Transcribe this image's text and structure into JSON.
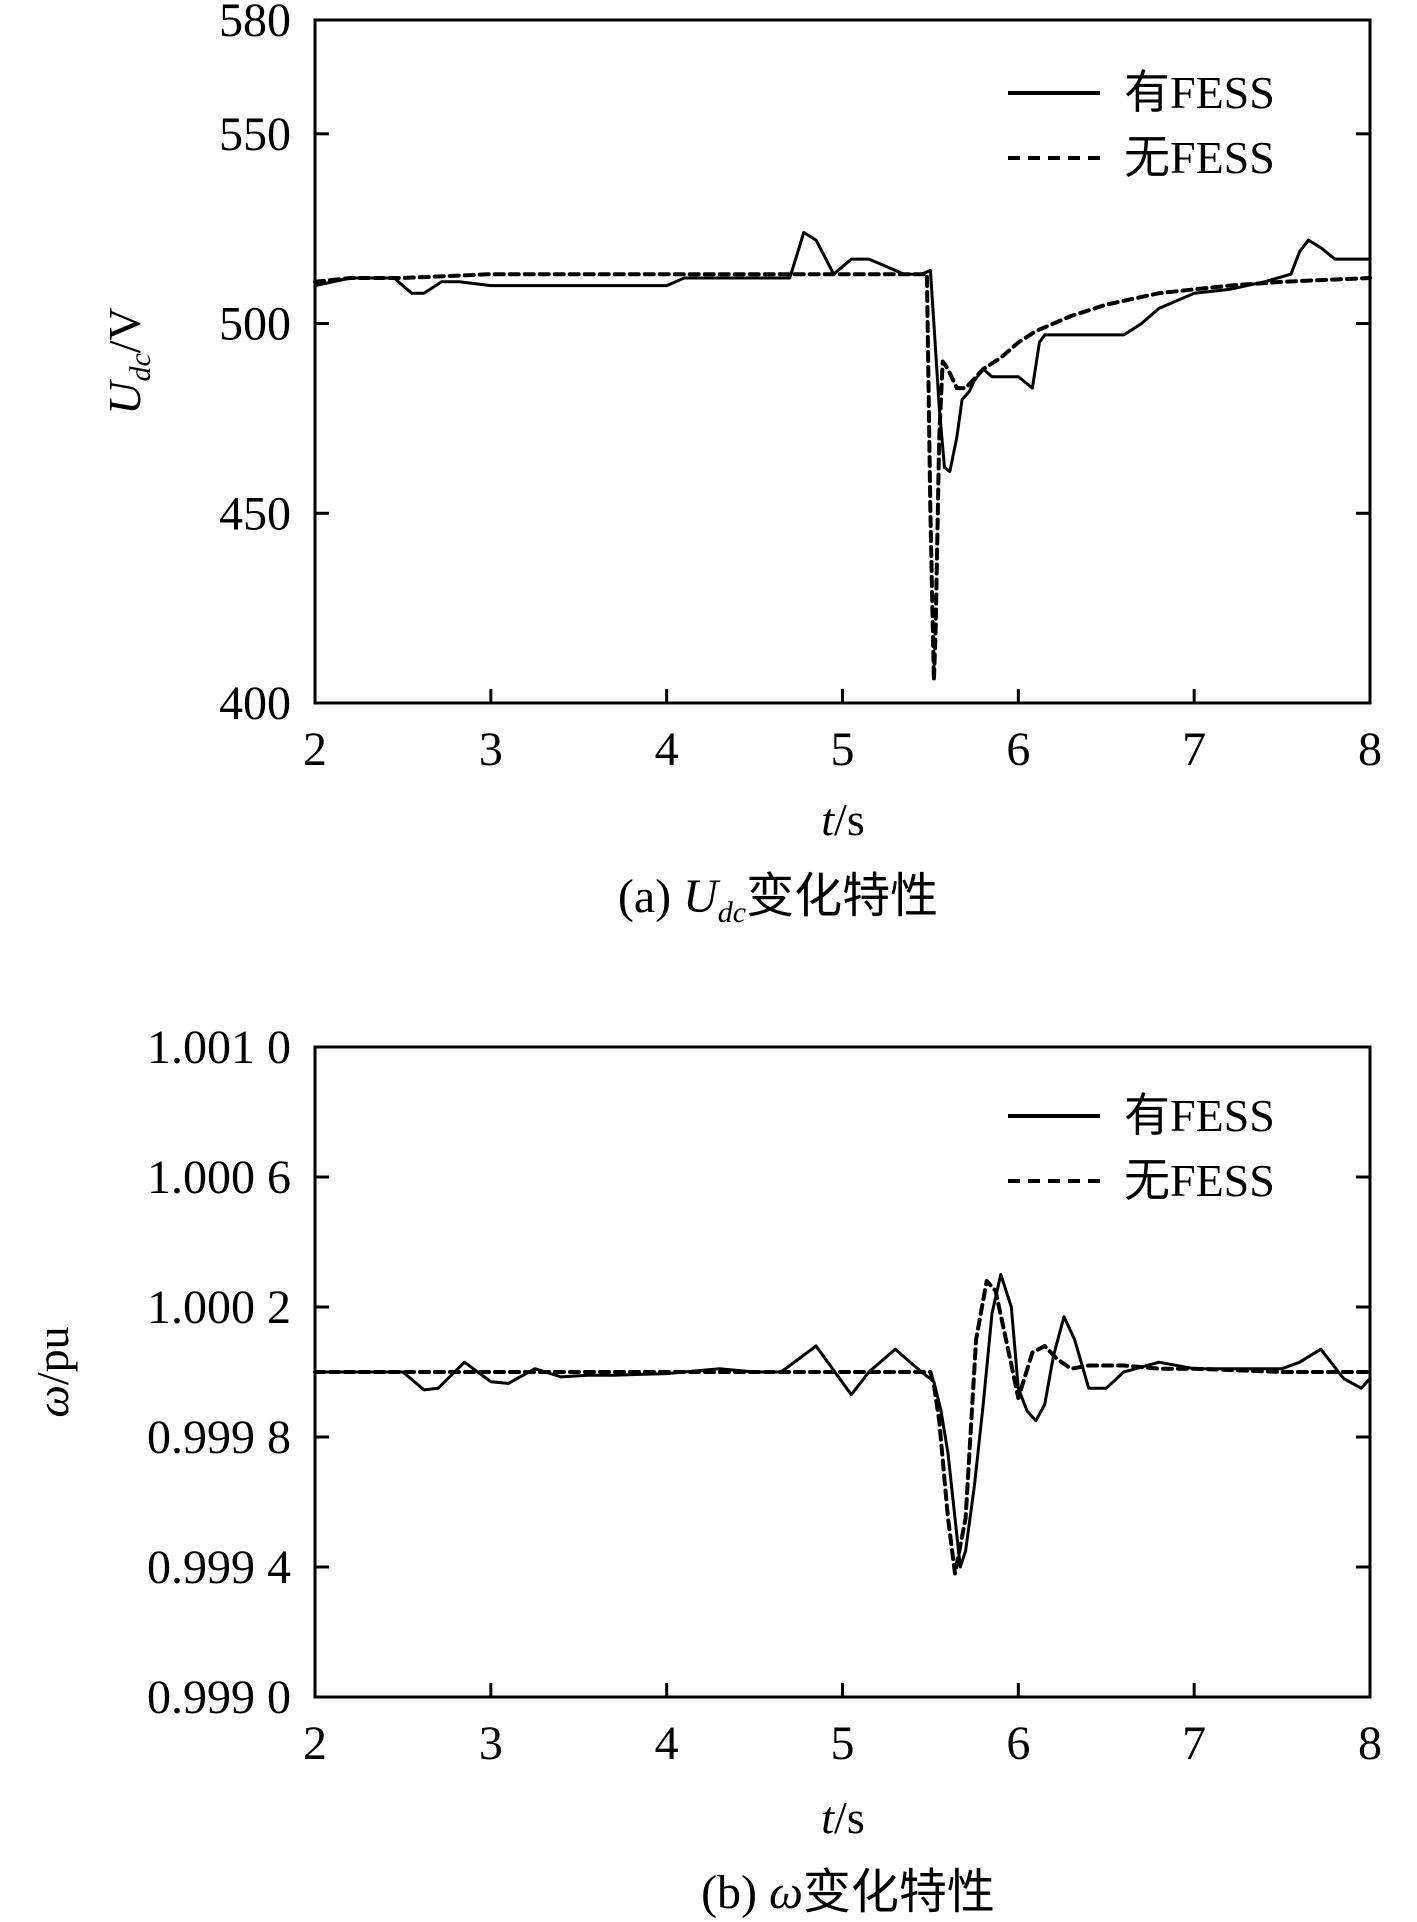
{
  "chart_data": [
    {
      "type": "line",
      "ylabel_main": "U",
      "ylabel_sub": "dc",
      "ylabel_unit": "/V",
      "xlabel_main": "t",
      "xlabel_unit": "/s",
      "caption_prefix": "(a) ",
      "caption_var": "U",
      "caption_sub": "dc",
      "caption_suffix": "变化特性",
      "xlim": [
        2,
        8
      ],
      "ylim": [
        400,
        580
      ],
      "xticks": [
        "2",
        "3",
        "4",
        "5",
        "6",
        "7",
        "8"
      ],
      "xtick_values": [
        2,
        3,
        4,
        5,
        6,
        7,
        8
      ],
      "yticks": [
        "400",
        "450",
        "500",
        "550",
        "580"
      ],
      "ytick_values": [
        400,
        450,
        500,
        550,
        580
      ],
      "grid": false,
      "legend_position": "top-right",
      "series": [
        {
          "name": "有FESS",
          "style": "solid",
          "x": [
            2.0,
            2.2,
            2.45,
            2.55,
            2.62,
            2.72,
            2.82,
            3.0,
            3.5,
            4.0,
            4.1,
            4.5,
            4.62,
            4.7,
            4.78,
            4.85,
            4.95,
            5.05,
            5.15,
            5.25,
            5.35,
            5.45,
            5.5,
            5.52,
            5.55,
            5.58,
            5.61,
            5.65,
            5.68,
            5.72,
            5.75,
            5.8,
            5.85,
            5.9,
            6.0,
            6.08,
            6.12,
            6.15,
            6.2,
            6.4,
            6.6,
            6.7,
            6.8,
            7.0,
            7.2,
            7.4,
            7.55,
            7.6,
            7.65,
            7.72,
            7.8,
            8.0
          ],
          "y": [
            510,
            512,
            512,
            508,
            508,
            511,
            511,
            510,
            510,
            510,
            512,
            512,
            512,
            512,
            524,
            522,
            513,
            517,
            517,
            515,
            513,
            513,
            514,
            500,
            478,
            462,
            461,
            470,
            480,
            482,
            485,
            488,
            486,
            486,
            486,
            483,
            495,
            497,
            497,
            497,
            497,
            500,
            504,
            508,
            509,
            511,
            513,
            519,
            522,
            520,
            517,
            517
          ]
        },
        {
          "name": "无FESS",
          "style": "dashed",
          "x": [
            2.0,
            2.2,
            2.5,
            3.0,
            3.5,
            4.0,
            4.5,
            5.0,
            5.48,
            5.5,
            5.52,
            5.53,
            5.55,
            5.57,
            5.6,
            5.65,
            5.7,
            5.8,
            5.9,
            6.0,
            6.1,
            6.3,
            6.5,
            6.8,
            7.0,
            7.2,
            7.5,
            8.0
          ],
          "y": [
            511,
            512,
            512,
            513,
            513,
            513,
            513,
            513,
            513,
            450,
            406,
            420,
            470,
            490,
            488,
            483,
            483,
            488,
            491,
            495,
            498,
            502,
            505,
            508,
            509,
            510,
            511,
            512
          ]
        }
      ]
    },
    {
      "type": "line",
      "ylabel_main": "ω",
      "ylabel_unit": "/pu",
      "xlabel_main": "t",
      "xlabel_unit": "/s",
      "caption_prefix": "(b) ",
      "caption_var": "ω",
      "caption_suffix": "变化特性",
      "xlim": [
        2,
        8
      ],
      "ylim": [
        0.999,
        1.001
      ],
      "xticks": [
        "2",
        "3",
        "4",
        "5",
        "6",
        "7",
        "8"
      ],
      "xtick_values": [
        2,
        3,
        4,
        5,
        6,
        7,
        8
      ],
      "yticks": [
        "0.999 0",
        "0.999 4",
        "0.999 8",
        "1.000 2",
        "1.000 6",
        "1.001 0"
      ],
      "ytick_values": [
        0.999,
        0.9994,
        0.9998,
        1.0002,
        1.0006,
        1.001
      ],
      "grid": false,
      "legend_position": "top-right",
      "series": [
        {
          "name": "有FESS",
          "style": "solid",
          "x": [
            2.0,
            2.5,
            2.62,
            2.7,
            2.85,
            3.0,
            3.1,
            3.25,
            3.4,
            3.55,
            3.7,
            4.0,
            4.3,
            4.5,
            4.65,
            4.85,
            5.05,
            5.15,
            5.3,
            5.45,
            5.52,
            5.56,
            5.6,
            5.64,
            5.67,
            5.7,
            5.75,
            5.8,
            5.85,
            5.9,
            5.96,
            6.0,
            6.05,
            6.1,
            6.15,
            6.2,
            6.26,
            6.32,
            6.4,
            6.5,
            6.6,
            6.8,
            7.0,
            7.5,
            7.6,
            7.72,
            7.85,
            7.95,
            8.0
          ],
          "y": [
            1.0,
            1.0,
            0.999945,
            0.99995,
            1.00003,
            0.99997,
            0.999965,
            1.00001,
            0.999985,
            0.99999,
            0.99999,
            0.999995,
            1.00001,
            1.0,
            1.0,
            1.00008,
            0.99993,
            1.0,
            1.00007,
            1.0,
            0.99997,
            0.99988,
            0.99975,
            0.99955,
            0.9994,
            0.99945,
            0.99965,
            0.9999,
            1.00018,
            1.0003,
            1.0002,
            0.99995,
            0.99988,
            0.99985,
            0.9999,
            1.00005,
            1.00017,
            1.0001,
            0.99995,
            0.99995,
            1.0,
            1.00003,
            1.00001,
            1.00001,
            1.00003,
            1.00007,
            0.99998,
            0.99995,
            0.99998
          ]
        },
        {
          "name": "无FESS",
          "style": "dashed",
          "x": [
            2.0,
            2.5,
            3.0,
            3.5,
            4.0,
            4.5,
            5.0,
            5.5,
            5.52,
            5.55,
            5.6,
            5.64,
            5.7,
            5.76,
            5.82,
            5.87,
            5.93,
            6.0,
            6.08,
            6.15,
            6.22,
            6.3,
            6.4,
            6.6,
            6.8,
            7.0,
            7.5,
            8.0
          ],
          "y": [
            1.0,
            1.0,
            1.0,
            1.0,
            1.0,
            1.0,
            1.0,
            1.0,
            0.99996,
            0.99985,
            0.99955,
            0.99938,
            0.99955,
            1.0001,
            1.00028,
            1.00025,
            1.0001,
            0.99992,
            1.00006,
            1.00008,
            1.00004,
            1.00001,
            1.00002,
            1.00002,
            1.00001,
            1.00001,
            1.0,
            1.0
          ]
        }
      ]
    }
  ]
}
